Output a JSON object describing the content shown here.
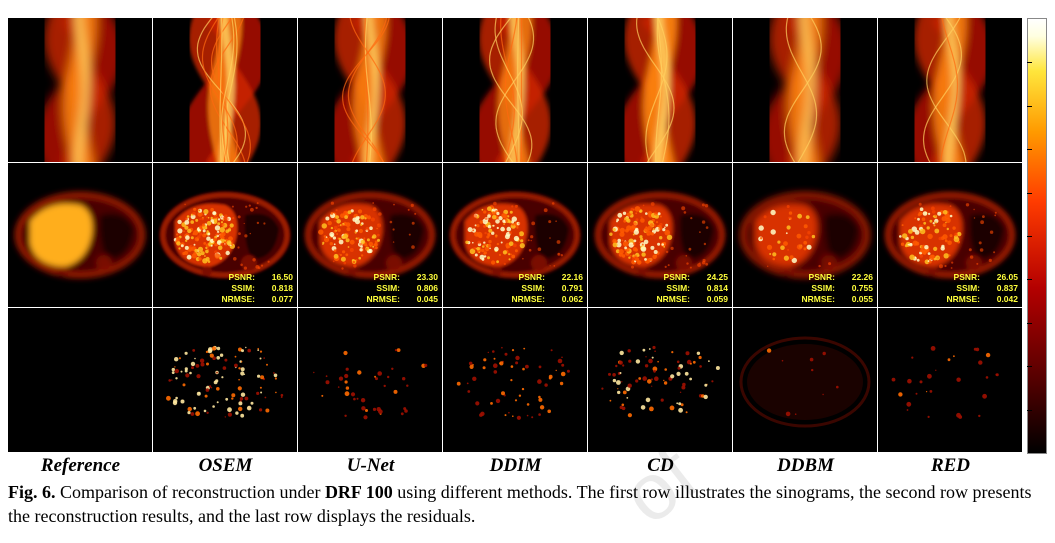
{
  "methods": [
    "Reference",
    "OSEM",
    "U-Net",
    "DDIM",
    "CD",
    "DDBM",
    "RED"
  ],
  "metrics": [
    null,
    {
      "psnr": "16.50",
      "ssim": "0.818",
      "nrmse": "0.077"
    },
    {
      "psnr": "23.30",
      "ssim": "0.806",
      "nrmse": "0.045"
    },
    {
      "psnr": "22.16",
      "ssim": "0.791",
      "nrmse": "0.062"
    },
    {
      "psnr": "24.25",
      "ssim": "0.814",
      "nrmse": "0.059"
    },
    {
      "psnr": "22.26",
      "ssim": "0.755",
      "nrmse": "0.055"
    },
    {
      "psnr": "26.05",
      "ssim": "0.837",
      "nrmse": "0.042"
    }
  ],
  "metric_labels": {
    "psnr": "PSNR:",
    "ssim": "SSIM:",
    "nrmse": "NRMSE:"
  },
  "row_contents": [
    "sinogram",
    "reconstruction",
    "residual"
  ],
  "colormap": "hot",
  "caption": {
    "fig": "Fig. 6.",
    "text1": " Comparison of reconstruction under ",
    "bold": "DRF 100",
    "text2": " using different methods. The first row illustrates the sinograms, the second row presents the reconstruction results, and the last row displays the residuals."
  },
  "watermark": "of"
}
